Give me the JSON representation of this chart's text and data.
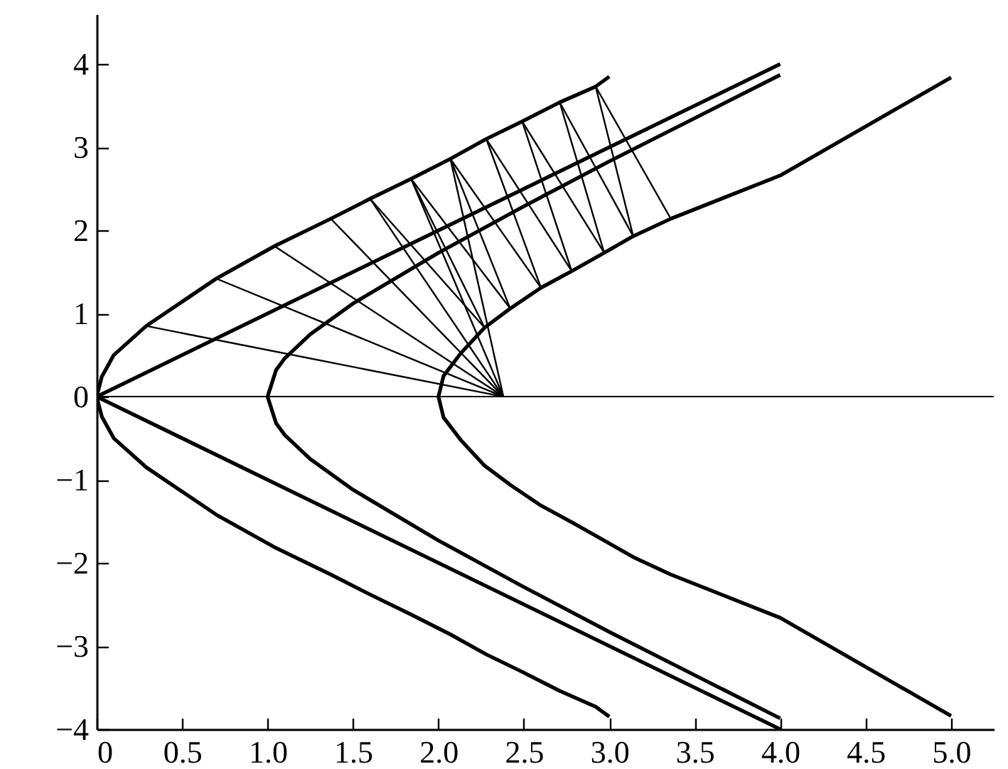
{
  "chart_data": {
    "type": "line",
    "xlim": [
      0,
      5.25
    ],
    "ylim": [
      -4,
      4.6
    ],
    "xticks": [
      0,
      {
        "value": 0.5,
        "label": "0.5"
      },
      {
        "value": 1,
        "label": "1.0"
      },
      {
        "value": 1.5,
        "label": "1.5"
      },
      {
        "value": 2,
        "label": "2.0"
      },
      {
        "value": 2.5,
        "label": "2.5"
      },
      {
        "value": 3,
        "label": "3.0"
      },
      {
        "value": 3.5,
        "label": "3.5"
      },
      {
        "value": 4,
        "label": "4.0"
      },
      {
        "value": 4.5,
        "label": "4.5"
      },
      {
        "value": 5,
        "label": "5.0"
      }
    ],
    "yticks": [
      {
        "value": -4,
        "label": "−4"
      },
      {
        "value": -3,
        "label": "−3"
      },
      {
        "value": -2,
        "label": "−2"
      },
      {
        "value": -1,
        "label": "−1"
      },
      0,
      1,
      2,
      3,
      4
    ],
    "grid": false,
    "marker": "none",
    "line_style": "solid",
    "ref_lines": [
      {
        "axis": "y",
        "value": 0,
        "label": null,
        "color": "#000000"
      }
    ],
    "series": [
      {
        "color": "#000000",
        "x": [
          3.0,
          2.92,
          2.71,
          2.49,
          2.28,
          2.07,
          1.84,
          1.6,
          1.37,
          1.04,
          0.7,
          0.29,
          0.1,
          0.03,
          0,
          0.03,
          0.1,
          0.29,
          0.7,
          1.04,
          1.37,
          1.6,
          1.84,
          2.07,
          2.28,
          2.49,
          2.71,
          2.92,
          3.0
        ],
        "values": [
          -3.85,
          -3.73,
          -3.54,
          -3.31,
          -3.1,
          -2.86,
          -2.62,
          -2.38,
          -2.14,
          -1.81,
          -1.42,
          -0.85,
          -0.5,
          -0.24,
          0,
          0.24,
          0.5,
          0.85,
          1.42,
          1.81,
          2.14,
          2.38,
          2.62,
          2.86,
          3.1,
          3.31,
          3.54,
          3.73,
          3.85
        ]
      },
      {
        "color": "#000000",
        "x": [
          4,
          0,
          4
        ],
        "values": [
          -4,
          0,
          4
        ]
      },
      {
        "color": "#000000",
        "x": [
          4,
          3.5,
          3,
          2.5,
          2,
          1.5,
          1.25,
          1.1,
          1.05,
          1,
          1.05,
          1.1,
          1.25,
          1.5,
          2,
          2.5,
          3,
          3.5,
          4
        ],
        "values": [
          -3.87,
          -3.35,
          -2.83,
          -2.29,
          -1.73,
          -1.12,
          -0.75,
          -0.46,
          -0.32,
          0,
          0.32,
          0.46,
          0.75,
          1.12,
          1.73,
          2.29,
          2.83,
          3.35,
          3.87
        ]
      },
      {
        "color": "#000000",
        "x": [
          5,
          4.0,
          3.36,
          3.14,
          2.97,
          2.78,
          2.6,
          2.42,
          2.27,
          2.13,
          2.03,
          2.0,
          2.03,
          2.13,
          2.27,
          2.42,
          2.6,
          2.78,
          2.97,
          3.14,
          3.36,
          4.0,
          5
        ],
        "values": [
          -3.84,
          -2.66,
          -2.14,
          -1.93,
          -1.73,
          -1.51,
          -1.31,
          -1.06,
          -0.83,
          -0.52,
          -0.25,
          0,
          0.25,
          0.52,
          0.83,
          1.06,
          1.31,
          1.51,
          1.73,
          1.93,
          2.14,
          2.66,
          3.84
        ]
      },
      {
        "color": "#000000",
        "x": [
          0.29,
          2.38
        ],
        "values": [
          0.85,
          0
        ]
      },
      {
        "color": "#000000",
        "x": [
          0.7,
          2.38
        ],
        "values": [
          1.42,
          0
        ]
      },
      {
        "color": "#000000",
        "x": [
          1.04,
          2.38
        ],
        "values": [
          1.81,
          0
        ]
      },
      {
        "color": "#000000",
        "x": [
          1.37,
          2.38
        ],
        "values": [
          2.14,
          0
        ]
      },
      {
        "color": "#000000",
        "x": [
          1.6,
          2.38
        ],
        "values": [
          2.38,
          0
        ]
      },
      {
        "color": "#000000",
        "x": [
          1.84,
          2.38
        ],
        "values": [
          2.62,
          0
        ]
      },
      {
        "color": "#000000",
        "x": [
          2.07,
          2.38
        ],
        "values": [
          2.86,
          0
        ]
      },
      {
        "color": "#000000",
        "x": [
          1.6,
          2.27
        ],
        "values": [
          2.38,
          0.83
        ]
      },
      {
        "color": "#000000",
        "x": [
          1.84,
          2.27
        ],
        "values": [
          2.62,
          0.83
        ]
      },
      {
        "color": "#000000",
        "x": [
          1.84,
          2.42
        ],
        "values": [
          2.62,
          1.06
        ]
      },
      {
        "color": "#000000",
        "x": [
          2.07,
          2.42
        ],
        "values": [
          2.86,
          1.06
        ]
      },
      {
        "color": "#000000",
        "x": [
          2.07,
          2.6
        ],
        "values": [
          2.86,
          1.31
        ]
      },
      {
        "color": "#000000",
        "x": [
          2.28,
          2.6
        ],
        "values": [
          3.1,
          1.31
        ]
      },
      {
        "color": "#000000",
        "x": [
          2.28,
          2.78
        ],
        "values": [
          3.1,
          1.51
        ]
      },
      {
        "color": "#000000",
        "x": [
          2.49,
          2.78
        ],
        "values": [
          3.31,
          1.51
        ]
      },
      {
        "color": "#000000",
        "x": [
          2.49,
          2.97
        ],
        "values": [
          3.31,
          1.73
        ]
      },
      {
        "color": "#000000",
        "x": [
          2.71,
          2.97
        ],
        "values": [
          3.54,
          1.73
        ]
      },
      {
        "color": "#000000",
        "x": [
          2.71,
          3.14
        ],
        "values": [
          3.54,
          1.93
        ]
      },
      {
        "color": "#000000",
        "x": [
          2.92,
          3.14
        ],
        "values": [
          3.73,
          1.93
        ]
      },
      {
        "color": "#000000",
        "x": [
          2.92,
          3.36
        ],
        "values": [
          3.73,
          2.14
        ]
      }
    ]
  }
}
